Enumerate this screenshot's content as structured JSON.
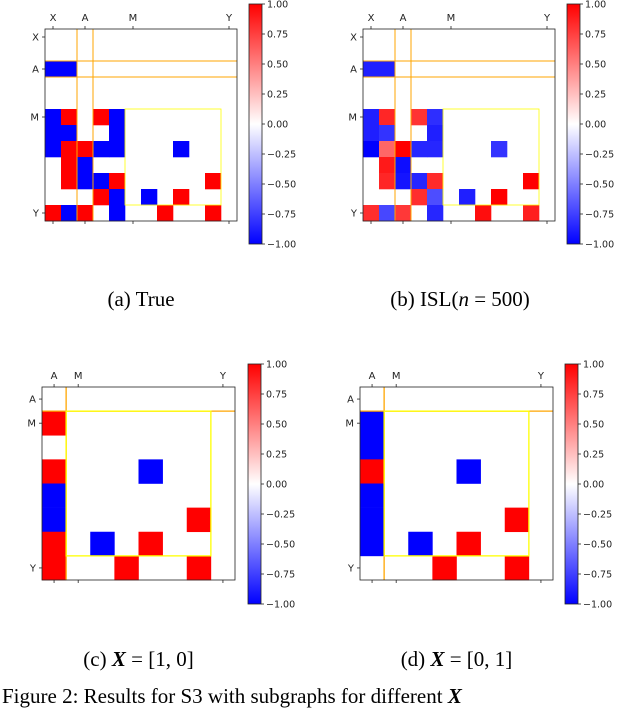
{
  "colormap": {
    "name": "bwr",
    "low": "#0000ff",
    "mid": "#ffffff",
    "high": "#ff0000"
  },
  "accent_colors": {
    "orange_lines": "#ffa500",
    "yellow_box": "#ffff00"
  },
  "chart_data": [
    {
      "type": "heatmap",
      "id": "a",
      "caption_prefix": "(a)",
      "caption_text": "True",
      "size": 12,
      "ticks": [
        {
          "index": 0,
          "label": "X"
        },
        {
          "index": 2,
          "label": "A"
        },
        {
          "index": 5,
          "label": "M"
        },
        {
          "index": 11,
          "label": "Y"
        }
      ],
      "colorbar": {
        "range": [
          -1,
          1
        ],
        "ticks": [
          "1.00",
          "0.75",
          "0.50",
          "0.25",
          "0.00",
          "−0.25",
          "−0.50",
          "−0.75",
          "−1.00"
        ]
      },
      "cells": [
        [
          2,
          0,
          -1
        ],
        [
          2,
          1,
          -1
        ],
        [
          5,
          0,
          -1
        ],
        [
          5,
          1,
          1
        ],
        [
          5,
          3,
          1
        ],
        [
          5,
          4,
          -1
        ],
        [
          6,
          0,
          -1
        ],
        [
          6,
          1,
          -1
        ],
        [
          6,
          4,
          -1
        ],
        [
          7,
          0,
          -1
        ],
        [
          7,
          1,
          1
        ],
        [
          7,
          2,
          1
        ],
        [
          7,
          3,
          -1
        ],
        [
          7,
          4,
          -1
        ],
        [
          7,
          8,
          -1
        ],
        [
          8,
          1,
          1
        ],
        [
          8,
          2,
          -1
        ],
        [
          9,
          1,
          1
        ],
        [
          9,
          2,
          -1
        ],
        [
          9,
          3,
          -1
        ],
        [
          9,
          4,
          1
        ],
        [
          9,
          10,
          1
        ],
        [
          10,
          3,
          1
        ],
        [
          10,
          4,
          -1
        ],
        [
          10,
          6,
          -1
        ],
        [
          10,
          8,
          1
        ],
        [
          11,
          0,
          1
        ],
        [
          11,
          1,
          -1
        ],
        [
          11,
          2,
          1
        ],
        [
          11,
          4,
          -1
        ],
        [
          11,
          7,
          1
        ],
        [
          11,
          10,
          1
        ]
      ],
      "highlight_orange": {
        "row": 2,
        "col": 2
      },
      "highlight_yellow": {
        "rows": [
          5,
          10
        ],
        "cols": [
          5,
          10
        ]
      }
    },
    {
      "type": "heatmap",
      "id": "b",
      "caption_prefix": "(b) ISL(",
      "caption_var": "n",
      "caption_eq": " = 500)",
      "size": 12,
      "ticks": [
        {
          "index": 0,
          "label": "X"
        },
        {
          "index": 2,
          "label": "A"
        },
        {
          "index": 5,
          "label": "M"
        },
        {
          "index": 11,
          "label": "Y"
        }
      ],
      "colorbar": {
        "range": [
          -1,
          1
        ],
        "ticks": [
          "1.00",
          "0.75",
          "0.50",
          "0.25",
          "0.00",
          "−0.25",
          "−0.50",
          "−0.75",
          "−1.00"
        ]
      },
      "cells": [
        [
          2,
          0,
          -0.88
        ],
        [
          2,
          1,
          -0.88
        ],
        [
          5,
          0,
          -0.88
        ],
        [
          5,
          1,
          0.85
        ],
        [
          5,
          3,
          0.8
        ],
        [
          5,
          4,
          -0.82
        ],
        [
          6,
          0,
          -0.88
        ],
        [
          6,
          1,
          -0.8
        ],
        [
          6,
          4,
          -0.88
        ],
        [
          7,
          0,
          -1
        ],
        [
          7,
          1,
          0.6
        ],
        [
          7,
          2,
          1
        ],
        [
          7,
          3,
          -0.85
        ],
        [
          7,
          4,
          -0.85
        ],
        [
          7,
          8,
          -0.8
        ],
        [
          8,
          1,
          0.9
        ],
        [
          8,
          2,
          -0.95
        ],
        [
          9,
          1,
          0.85
        ],
        [
          9,
          2,
          -0.92
        ],
        [
          9,
          3,
          -0.85
        ],
        [
          9,
          4,
          0.83
        ],
        [
          9,
          10,
          1
        ],
        [
          10,
          3,
          0.82
        ],
        [
          10,
          4,
          -0.7
        ],
        [
          10,
          6,
          -0.88
        ],
        [
          10,
          8,
          1
        ],
        [
          11,
          0,
          0.82
        ],
        [
          11,
          1,
          -0.72
        ],
        [
          11,
          2,
          0.78
        ],
        [
          11,
          4,
          -0.85
        ],
        [
          11,
          7,
          0.95
        ],
        [
          11,
          10,
          0.88
        ]
      ],
      "highlight_orange": {
        "row": 2,
        "col": 2
      },
      "highlight_yellow": {
        "rows": [
          5,
          10
        ],
        "cols": [
          5,
          10
        ]
      }
    },
    {
      "type": "heatmap",
      "id": "c",
      "caption_prefix": "(c) ",
      "caption_var": "X",
      "caption_eq": " = [1, 0]",
      "size": 8,
      "ticks": [
        {
          "index": 0,
          "label": "A"
        },
        {
          "index": 1,
          "label": "M"
        },
        {
          "index": 7,
          "label": "Y"
        }
      ],
      "colorbar": {
        "range": [
          -1,
          1
        ],
        "ticks": [
          "1.00",
          "0.75",
          "0.50",
          "0.25",
          "0.00",
          "−0.25",
          "−0.50",
          "−0.75",
          "−1.00"
        ]
      },
      "cells": [
        [
          1,
          0,
          1
        ],
        [
          3,
          0,
          1
        ],
        [
          4,
          0,
          -1
        ],
        [
          5,
          0,
          -1
        ],
        [
          6,
          0,
          1
        ],
        [
          7,
          0,
          1
        ],
        [
          3,
          4,
          -1
        ],
        [
          5,
          6,
          1
        ],
        [
          6,
          2,
          -1
        ],
        [
          6,
          4,
          1
        ],
        [
          7,
          3,
          1
        ],
        [
          7,
          6,
          1
        ]
      ],
      "highlight_orange": {
        "row": 0,
        "col": 0,
        "single": true
      },
      "highlight_yellow": {
        "rows": [
          1,
          6
        ],
        "cols": [
          1,
          6
        ]
      }
    },
    {
      "type": "heatmap",
      "id": "d",
      "caption_prefix": "(d) ",
      "caption_var": "X",
      "caption_eq": " = [0, 1]",
      "size": 8,
      "ticks": [
        {
          "index": 0,
          "label": "A"
        },
        {
          "index": 1,
          "label": "M"
        },
        {
          "index": 7,
          "label": "Y"
        }
      ],
      "colorbar": {
        "range": [
          -1,
          1
        ],
        "ticks": [
          "1.00",
          "0.75",
          "0.50",
          "0.25",
          "0.00",
          "−0.25",
          "−0.50",
          "−0.75",
          "−1.00"
        ]
      },
      "cells": [
        [
          1,
          0,
          -1
        ],
        [
          2,
          0,
          -1
        ],
        [
          3,
          0,
          1
        ],
        [
          4,
          0,
          -1
        ],
        [
          5,
          0,
          -1
        ],
        [
          6,
          0,
          -1
        ],
        [
          3,
          4,
          -1
        ],
        [
          5,
          6,
          1
        ],
        [
          6,
          2,
          -1
        ],
        [
          6,
          4,
          1
        ],
        [
          7,
          3,
          1
        ],
        [
          7,
          6,
          1
        ]
      ],
      "highlight_orange": {
        "row": 0,
        "col": 0,
        "single": true
      },
      "highlight_yellow": {
        "rows": [
          1,
          6
        ],
        "cols": [
          1,
          6
        ]
      }
    }
  ],
  "figure_caption": {
    "prefix": "Figure 2: Results for S3 with subgraphs for different ",
    "var": "X"
  }
}
